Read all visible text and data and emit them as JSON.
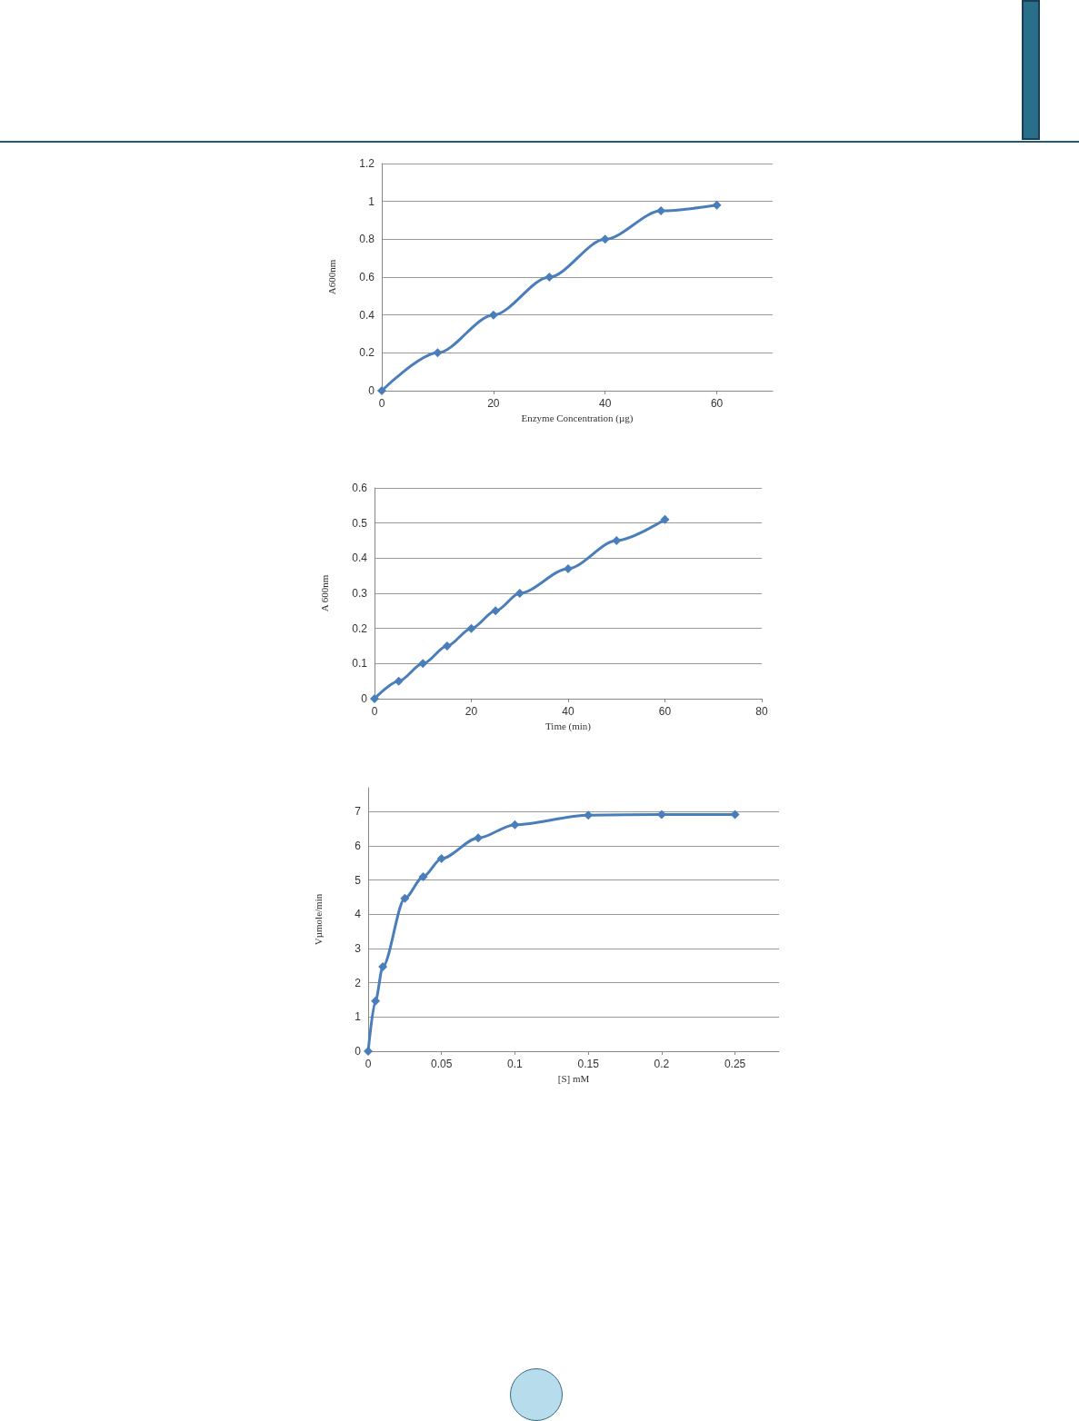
{
  "chart_data": [
    {
      "type": "line",
      "xlabel": "Enzyme Concentration (µg)",
      "ylabel": "A600nm",
      "x": [
        0,
        10,
        20,
        30,
        40,
        50,
        60
      ],
      "series": [
        {
          "color": "#4a7ebb",
          "values": [
            0,
            0.2,
            0.4,
            0.6,
            0.8,
            0.95,
            0.98
          ]
        }
      ],
      "xlim": [
        0,
        70
      ],
      "xticks": [
        0,
        20,
        40,
        60
      ],
      "ylim": [
        0,
        1.2
      ],
      "yticks": [
        0,
        0.2,
        0.4,
        0.6,
        0.8,
        1,
        1.2
      ],
      "grid": "y",
      "marker": "diamond",
      "line_style": "solid"
    },
    {
      "type": "line",
      "xlabel": "Time (min)",
      "ylabel": "A 600nm",
      "x": [
        0,
        5,
        10,
        15,
        20,
        25,
        30,
        40,
        50,
        60
      ],
      "series": [
        {
          "color": "#4a7ebb",
          "values": [
            0,
            0.05,
            0.1,
            0.15,
            0.2,
            0.25,
            0.3,
            0.37,
            0.45,
            0.51
          ]
        }
      ],
      "xlim": [
        0,
        80
      ],
      "xticks": [
        0,
        20,
        40,
        60,
        80
      ],
      "ylim": [
        0,
        0.6
      ],
      "yticks": [
        0,
        0.1,
        0.2,
        0.3,
        0.4,
        0.5,
        0.6
      ],
      "grid": "y",
      "marker": "diamond",
      "line_style": "solid"
    },
    {
      "type": "line",
      "xlabel": "[S] mM",
      "ylabel": "Vµmole/min",
      "x": [
        0,
        0.005,
        0.01,
        0.025,
        0.0375,
        0.05,
        0.075,
        0.1,
        0.15,
        0.2,
        0.25
      ],
      "series": [
        {
          "color": "#4a7ebb",
          "values": [
            0,
            1.47,
            2.47,
            4.47,
            5.1,
            5.63,
            6.23,
            6.62,
            6.9,
            6.92,
            6.92
          ]
        }
      ],
      "xlim": [
        0,
        0.28
      ],
      "xticks": [
        0,
        0.05,
        0.1,
        0.15,
        0.2,
        0.25
      ],
      "ylim": [
        0,
        7.7
      ],
      "yticks": [
        0,
        1,
        2,
        3,
        4,
        5,
        6,
        7
      ],
      "grid": "y",
      "marker": "diamond",
      "line_style": "solid"
    }
  ]
}
